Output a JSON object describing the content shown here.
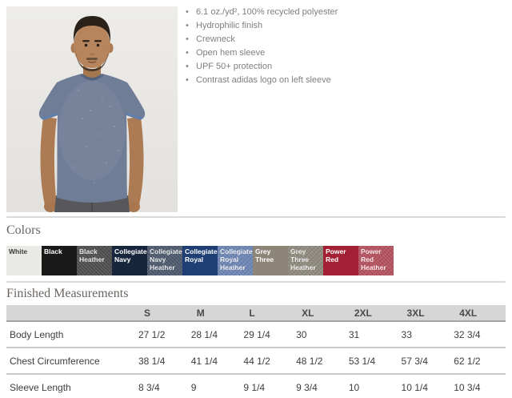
{
  "icons": {
    "bullet_glyph": "•"
  },
  "product": {
    "features": [
      "6.1 oz./yd², 100% recycled polyester",
      "Hydrophilic finish",
      "Crewneck",
      "Open hem sleeve",
      "UPF 50+ protection",
      "Contrast adidas logo on left sleeve"
    ]
  },
  "colors_section": {
    "heading": "Colors",
    "swatches": [
      {
        "name": "White",
        "bg": "#e9e9e6",
        "text_color": "#3a3a3a",
        "heather": false
      },
      {
        "name": "Black",
        "bg": "#191919",
        "text_color": "#ffffff",
        "heather": false
      },
      {
        "name": "Black Heather",
        "bg": "#4e4e4e",
        "text_color": "#e8e8e8",
        "heather": true
      },
      {
        "name": "Collegiate Navy",
        "bg": "#17263c",
        "text_color": "#ffffff",
        "heather": false
      },
      {
        "name": "Collegiate Navy Heather",
        "bg": "#4d5a6e",
        "text_color": "#e8e8e8",
        "heather": true
      },
      {
        "name": "Collegiate Royal",
        "bg": "#1e3e74",
        "text_color": "#ffffff",
        "heather": false
      },
      {
        "name": "Collegiate Royal Heather",
        "bg": "#6e86b5",
        "text_color": "#f0f0f0",
        "heather": true
      },
      {
        "name": "Grey Three",
        "bg": "#8d8577",
        "text_color": "#ffffff",
        "heather": false
      },
      {
        "name": "Grey Three Heather",
        "bg": "#8f8a7e",
        "text_color": "#f0f0f0",
        "heather": true
      },
      {
        "name": "Power Red",
        "bg": "#a31f34",
        "text_color": "#ffffff",
        "heather": false
      },
      {
        "name": "Power Red Heather",
        "bg": "#b5525f",
        "text_color": "#ffe9e9",
        "heather": true
      }
    ]
  },
  "measurements": {
    "heading": "Finished Measurements",
    "columns": [
      "S",
      "M",
      "L",
      "XL",
      "2XL",
      "3XL",
      "4XL"
    ],
    "rows": [
      {
        "label": "Body Length",
        "values": [
          "27 1/2",
          "28 1/4",
          "29 1/4",
          "30",
          "31",
          "33",
          "32 3/4"
        ]
      },
      {
        "label": "Chest Circumference",
        "values": [
          "38 1/4",
          "41 1/4",
          "44 1/2",
          "48 1/2",
          "53 1/4",
          "57 3/4",
          "62 1/2"
        ]
      },
      {
        "label": "Sleeve Length",
        "values": [
          "8 3/4",
          "9",
          "9 1/4",
          "9 3/4",
          "10",
          "10 1/4",
          "10 3/4"
        ]
      }
    ]
  }
}
